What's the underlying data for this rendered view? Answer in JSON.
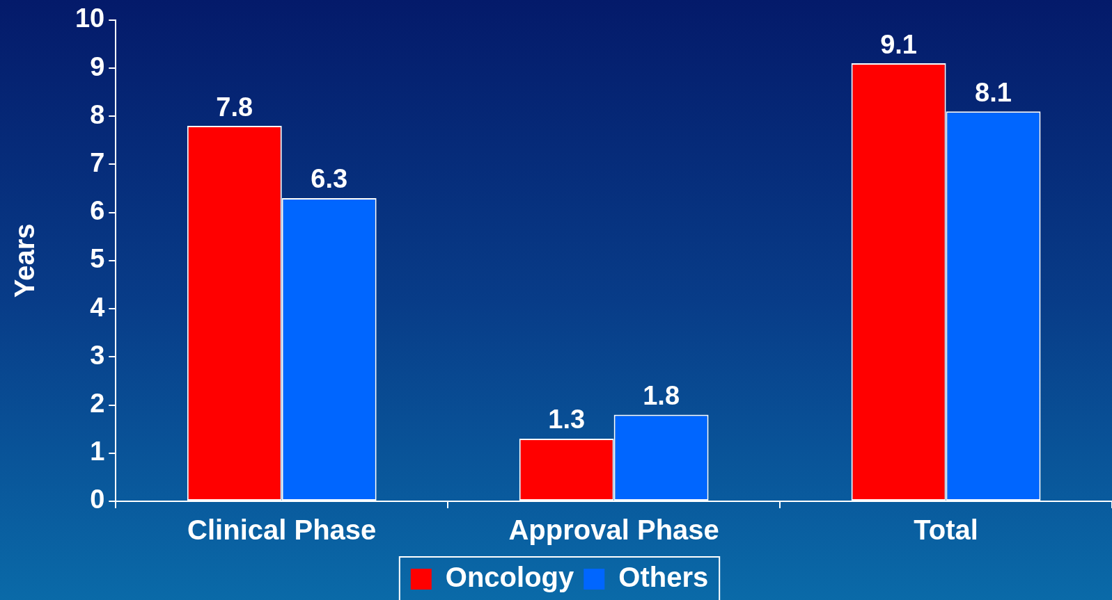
{
  "chart_data": {
    "type": "bar",
    "ylabel": "Years",
    "categories": [
      "Clinical Phase",
      "Approval Phase",
      "Total"
    ],
    "series": [
      {
        "name": "Oncology",
        "color": "#ff0000",
        "values": [
          7.8,
          1.3,
          9.1
        ]
      },
      {
        "name": "Others",
        "color": "#0066ff",
        "values": [
          6.3,
          1.8,
          8.1
        ]
      }
    ],
    "ylim": [
      0,
      10
    ],
    "yticks": [
      0,
      1,
      2,
      3,
      4,
      5,
      6,
      7,
      8,
      9,
      10
    ],
    "grid": false,
    "legend": "bottom",
    "data_labels": true
  }
}
